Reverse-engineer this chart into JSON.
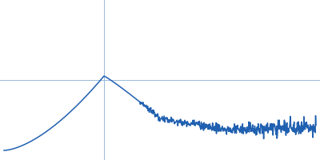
{
  "line_color": "#2060b0",
  "background_color": "#ffffff",
  "crosshair_color": "#99bbdd",
  "crosshair_linewidth": 0.7,
  "line_width": 1.1,
  "figsize": [
    4.0,
    2.0
  ],
  "dpi": 100,
  "noise_seed": 7
}
